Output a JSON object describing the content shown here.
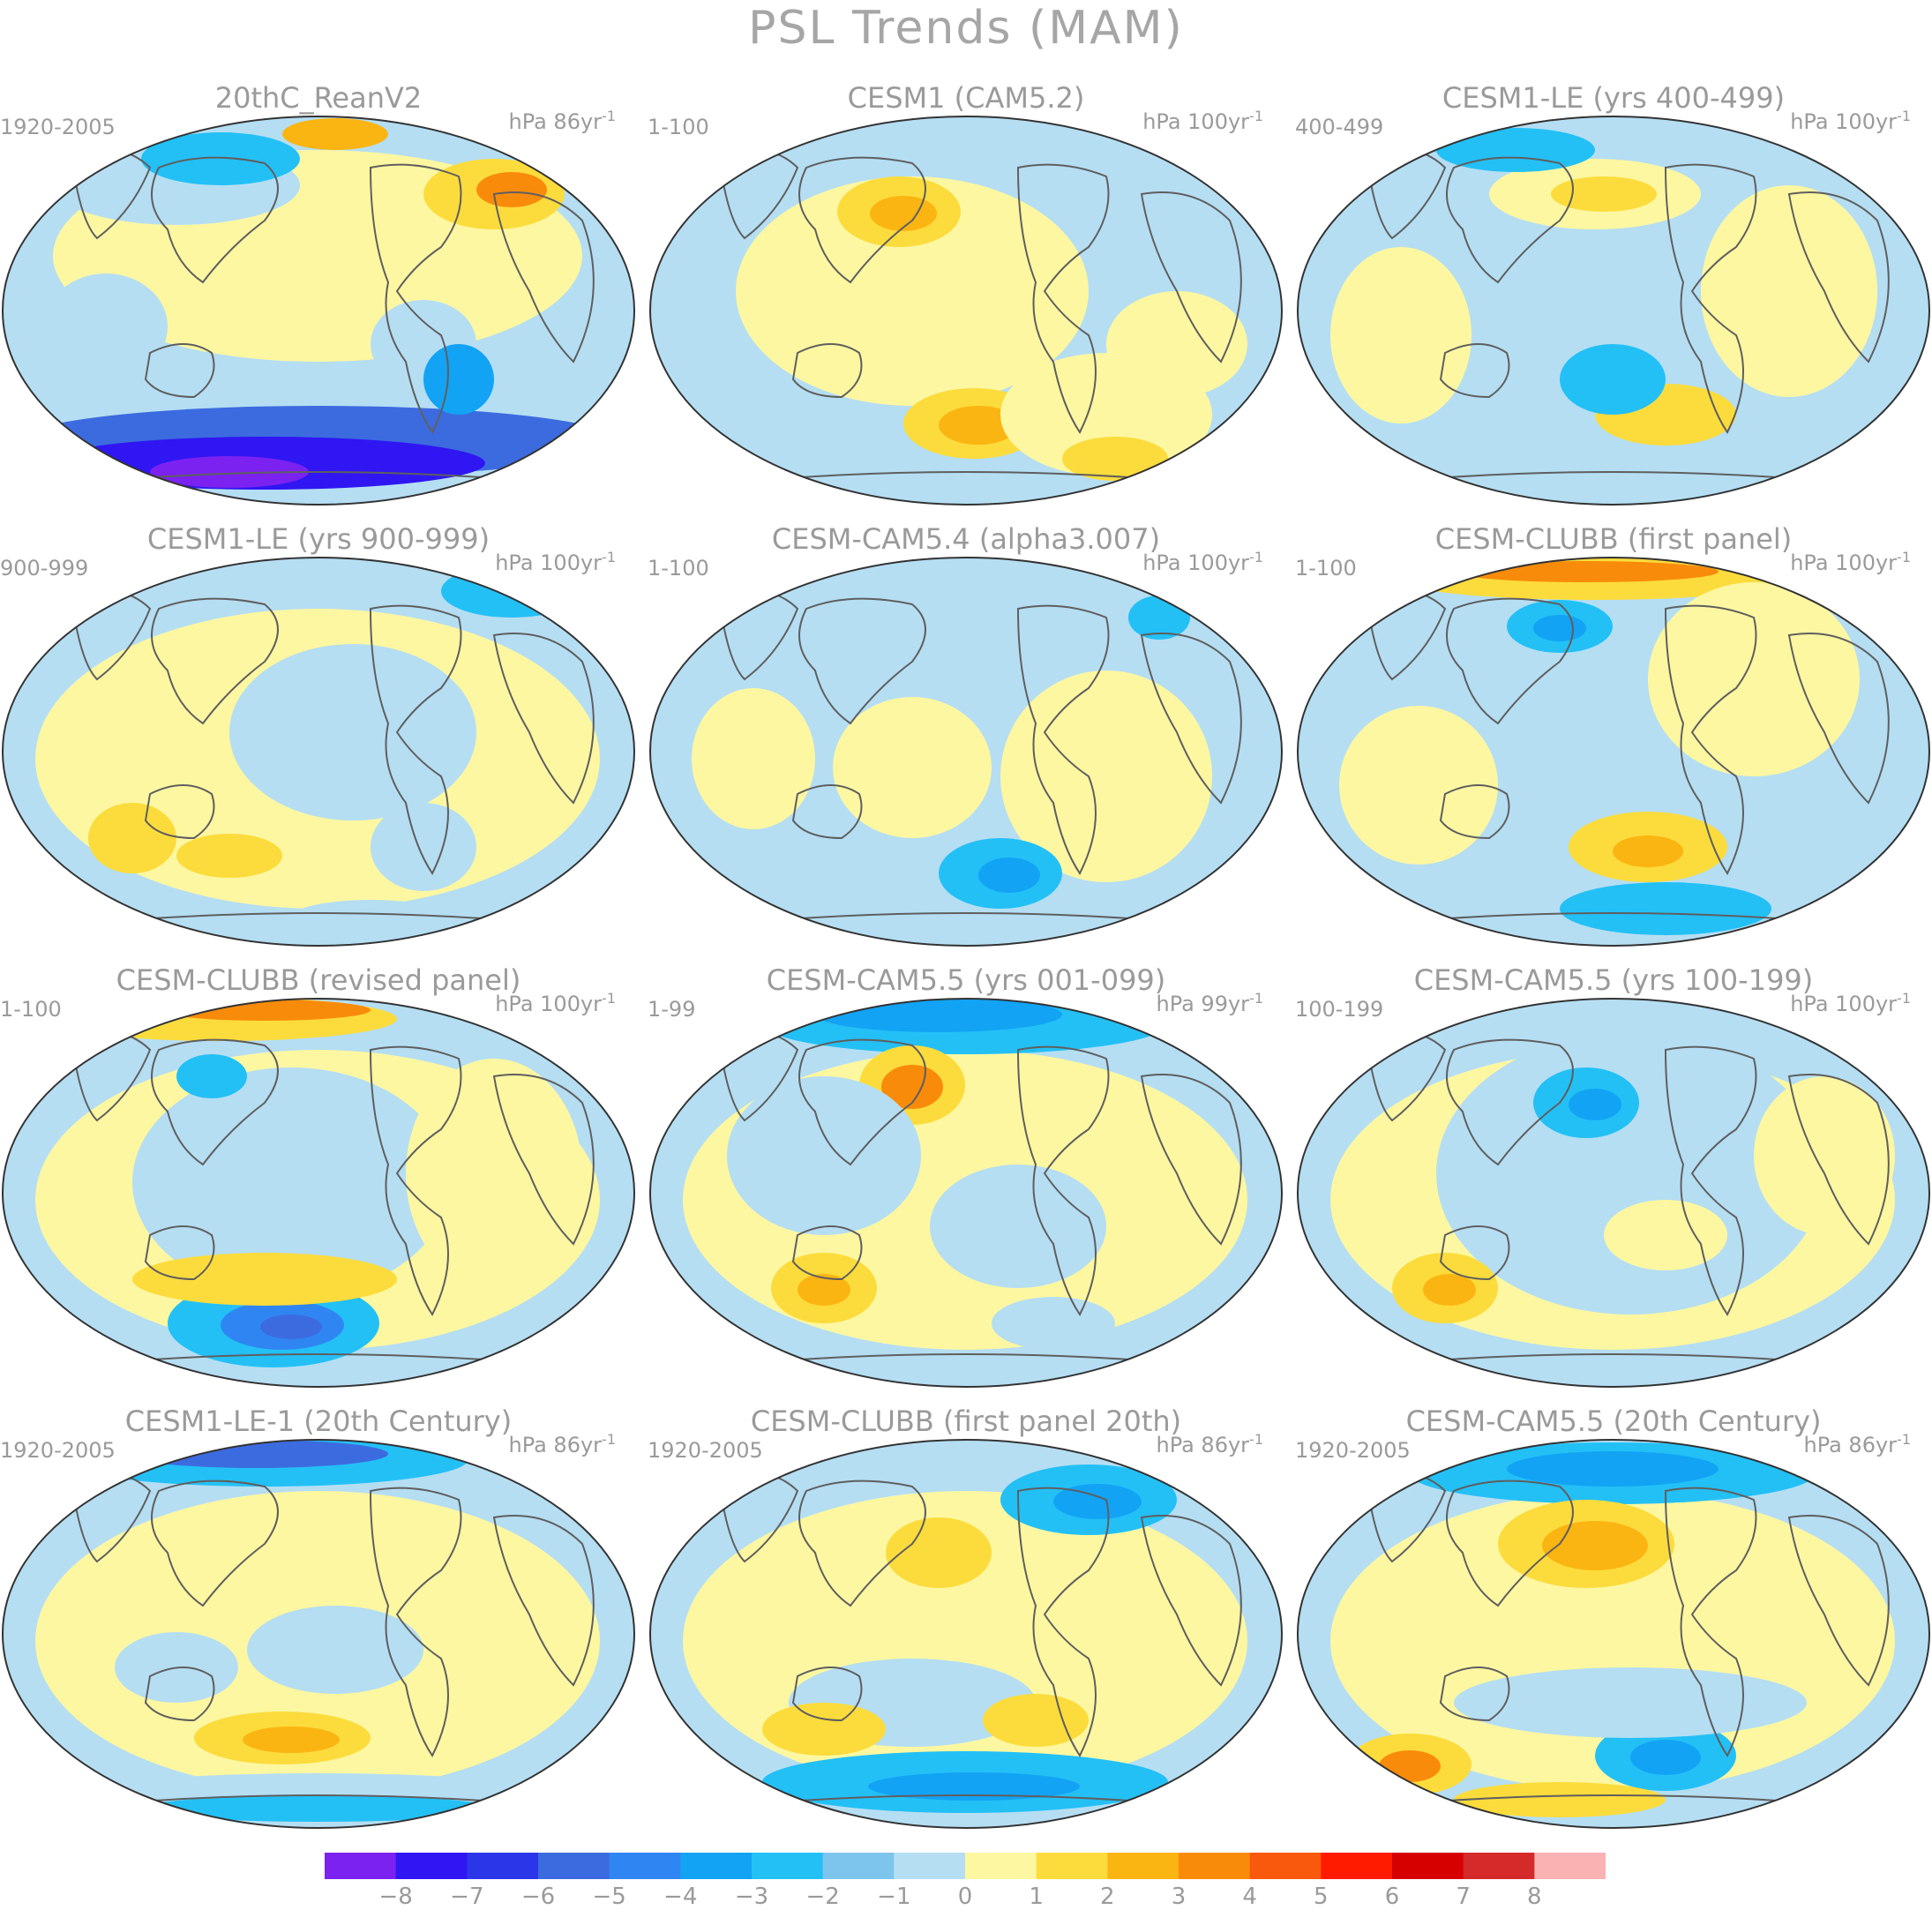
{
  "title": "PSL Trends (MAM)",
  "panels": [
    {
      "title": "20thC_ReanV2",
      "period": "1920-2005",
      "units": "hPa 86yr",
      "units_exp": "-1"
    },
    {
      "title": "CESM1 (CAM5.2)",
      "period": "1-100",
      "units": "hPa 100yr",
      "units_exp": "-1"
    },
    {
      "title": "CESM1-LE (yrs 400-499)",
      "period": "400-499",
      "units": "hPa 100yr",
      "units_exp": "-1"
    },
    {
      "title": "CESM1-LE (yrs 900-999)",
      "period": "900-999",
      "units": "hPa 100yr",
      "units_exp": "-1"
    },
    {
      "title": "CESM-CAM5.4 (alpha3.007)",
      "period": "1-100",
      "units": "hPa 100yr",
      "units_exp": "-1"
    },
    {
      "title": "CESM-CLUBB (first panel)",
      "period": "1-100",
      "units": "hPa 100yr",
      "units_exp": "-1"
    },
    {
      "title": "CESM-CLUBB (revised panel)",
      "period": "1-100",
      "units": "hPa 100yr",
      "units_exp": "-1"
    },
    {
      "title": "CESM-CAM5.5 (yrs 001-099)",
      "period": "1-99",
      "units": "hPa 99yr",
      "units_exp": "-1"
    },
    {
      "title": "CESM-CAM5.5 (yrs 100-199)",
      "period": "100-199",
      "units": "hPa 100yr",
      "units_exp": "-1"
    },
    {
      "title": "CESM1-LE-1 (20th Century)",
      "period": "1920-2005",
      "units": "hPa 86yr",
      "units_exp": "-1"
    },
    {
      "title": "CESM-CLUBB (first panel 20th)",
      "period": "1920-2005",
      "units": "hPa 86yr",
      "units_exp": "-1"
    },
    {
      "title": "CESM-CAM5.5 (20th Century)",
      "period": "1920-2005",
      "units": "hPa 86yr",
      "units_exp": "-1"
    }
  ],
  "colorbar": {
    "ticks": [
      "−8",
      "−7",
      "−6",
      "−5",
      "−4",
      "−3",
      "−2",
      "−1",
      "0",
      "1",
      "2",
      "3",
      "4",
      "5",
      "6",
      "7",
      "8"
    ],
    "colors": [
      "#7b22f0",
      "#2f16f2",
      "#2a36e8",
      "#3c6be0",
      "#2f86f2",
      "#12a3f5",
      "#23c0f6",
      "#7ec5ee",
      "#b5def3",
      "#fdf7a1",
      "#fcdc3c",
      "#fbb512",
      "#f98b0b",
      "#f9590c",
      "#ff1b00",
      "#d60000",
      "#d42a2a",
      "#fbb2b2"
    ],
    "colors_order": "low to high"
  },
  "colors": {
    "coast": "#5f5f5f",
    "text": "#9a9a9a"
  }
}
